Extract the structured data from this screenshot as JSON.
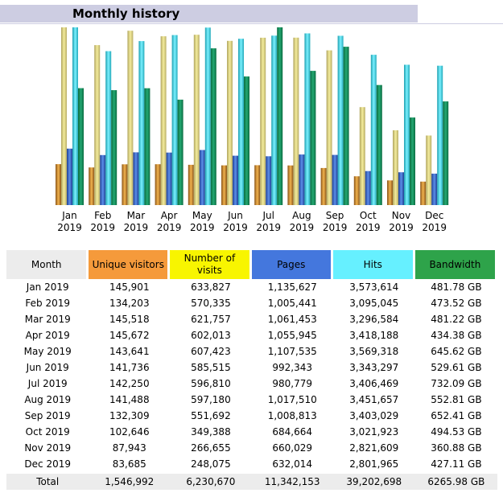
{
  "header": {
    "title": "Monthly history"
  },
  "colors": {
    "visitors": "#f59a3b",
    "visits": "#f8f500",
    "pages": "#4477dd",
    "hits": "#66f0ff",
    "bandwidth": "#2ea34a",
    "header_neutral": "#ececec",
    "title_bar": "#cdcde2"
  },
  "chart_data": {
    "type": "bar",
    "categories": [
      "Jan 2019",
      "Feb 2019",
      "Mar 2019",
      "Apr 2019",
      "May 2019",
      "Jun 2019",
      "Jul 2019",
      "Aug 2019",
      "Sep 2019",
      "Oct 2019",
      "Nov 2019",
      "Dec 2019"
    ],
    "month_labels": [
      {
        "m": "Jan",
        "y": "2019"
      },
      {
        "m": "Feb",
        "y": "2019"
      },
      {
        "m": "Mar",
        "y": "2019"
      },
      {
        "m": "Apr",
        "y": "2019"
      },
      {
        "m": "May",
        "y": "2019"
      },
      {
        "m": "Jun",
        "y": "2019"
      },
      {
        "m": "Jul",
        "y": "2019"
      },
      {
        "m": "Aug",
        "y": "2019"
      },
      {
        "m": "Sep",
        "y": "2019"
      },
      {
        "m": "Oct",
        "y": "2019"
      },
      {
        "m": "Nov",
        "y": "2019"
      },
      {
        "m": "Dec",
        "y": "2019"
      }
    ],
    "series": [
      {
        "key": "visitors",
        "values": [
          145901,
          134203,
          145518,
          145672,
          143641,
          141736,
          142250,
          141488,
          132309,
          102646,
          87943,
          83685
        ]
      },
      {
        "key": "visits",
        "values": [
          633827,
          570335,
          621757,
          602013,
          607423,
          585515,
          596810,
          597180,
          551692,
          349388,
          266655,
          248075
        ]
      },
      {
        "key": "pages",
        "values": [
          1135627,
          1005441,
          1061453,
          1055945,
          1107535,
          992343,
          980779,
          1017510,
          1008813,
          684664,
          660029,
          632014
        ]
      },
      {
        "key": "hits",
        "values": [
          3573614,
          3095045,
          3296584,
          3418188,
          3569318,
          3343297,
          3406469,
          3451657,
          3403029,
          3021923,
          2821609,
          2801965
        ]
      },
      {
        "key": "bandwidth",
        "values": [
          481.78,
          473.52,
          481.22,
          434.38,
          645.62,
          529.61,
          732.09,
          552.81,
          652.41,
          494.53,
          360.88,
          427.11
        ]
      }
    ]
  },
  "table": {
    "headers": {
      "month": "Month",
      "visitors": "Unique visitors",
      "visits": "Number of visits",
      "pages": "Pages",
      "hits": "Hits",
      "bandwidth": "Bandwidth"
    },
    "rows": [
      {
        "month": "Jan 2019",
        "visitors": "145,901",
        "visits": "633,827",
        "pages": "1,135,627",
        "hits": "3,573,614",
        "bandwidth": "481.78 GB"
      },
      {
        "month": "Feb 2019",
        "visitors": "134,203",
        "visits": "570,335",
        "pages": "1,005,441",
        "hits": "3,095,045",
        "bandwidth": "473.52 GB"
      },
      {
        "month": "Mar 2019",
        "visitors": "145,518",
        "visits": "621,757",
        "pages": "1,061,453",
        "hits": "3,296,584",
        "bandwidth": "481.22 GB"
      },
      {
        "month": "Apr 2019",
        "visitors": "145,672",
        "visits": "602,013",
        "pages": "1,055,945",
        "hits": "3,418,188",
        "bandwidth": "434.38 GB"
      },
      {
        "month": "May 2019",
        "visitors": "143,641",
        "visits": "607,423",
        "pages": "1,107,535",
        "hits": "3,569,318",
        "bandwidth": "645.62 GB"
      },
      {
        "month": "Jun 2019",
        "visitors": "141,736",
        "visits": "585,515",
        "pages": "992,343",
        "hits": "3,343,297",
        "bandwidth": "529.61 GB"
      },
      {
        "month": "Jul 2019",
        "visitors": "142,250",
        "visits": "596,810",
        "pages": "980,779",
        "hits": "3,406,469",
        "bandwidth": "732.09 GB"
      },
      {
        "month": "Aug 2019",
        "visitors": "141,488",
        "visits": "597,180",
        "pages": "1,017,510",
        "hits": "3,451,657",
        "bandwidth": "552.81 GB"
      },
      {
        "month": "Sep 2019",
        "visitors": "132,309",
        "visits": "551,692",
        "pages": "1,008,813",
        "hits": "3,403,029",
        "bandwidth": "652.41 GB"
      },
      {
        "month": "Oct 2019",
        "visitors": "102,646",
        "visits": "349,388",
        "pages": "684,664",
        "hits": "3,021,923",
        "bandwidth": "494.53 GB"
      },
      {
        "month": "Nov 2019",
        "visitors": "87,943",
        "visits": "266,655",
        "pages": "660,029",
        "hits": "2,821,609",
        "bandwidth": "360.88 GB"
      },
      {
        "month": "Dec 2019",
        "visitors": "83,685",
        "visits": "248,075",
        "pages": "632,014",
        "hits": "2,801,965",
        "bandwidth": "427.11 GB"
      }
    ],
    "total": {
      "month": "Total",
      "visitors": "1,546,992",
      "visits": "6,230,670",
      "pages": "11,342,153",
      "hits": "39,202,698",
      "bandwidth": "6265.98 GB"
    }
  }
}
